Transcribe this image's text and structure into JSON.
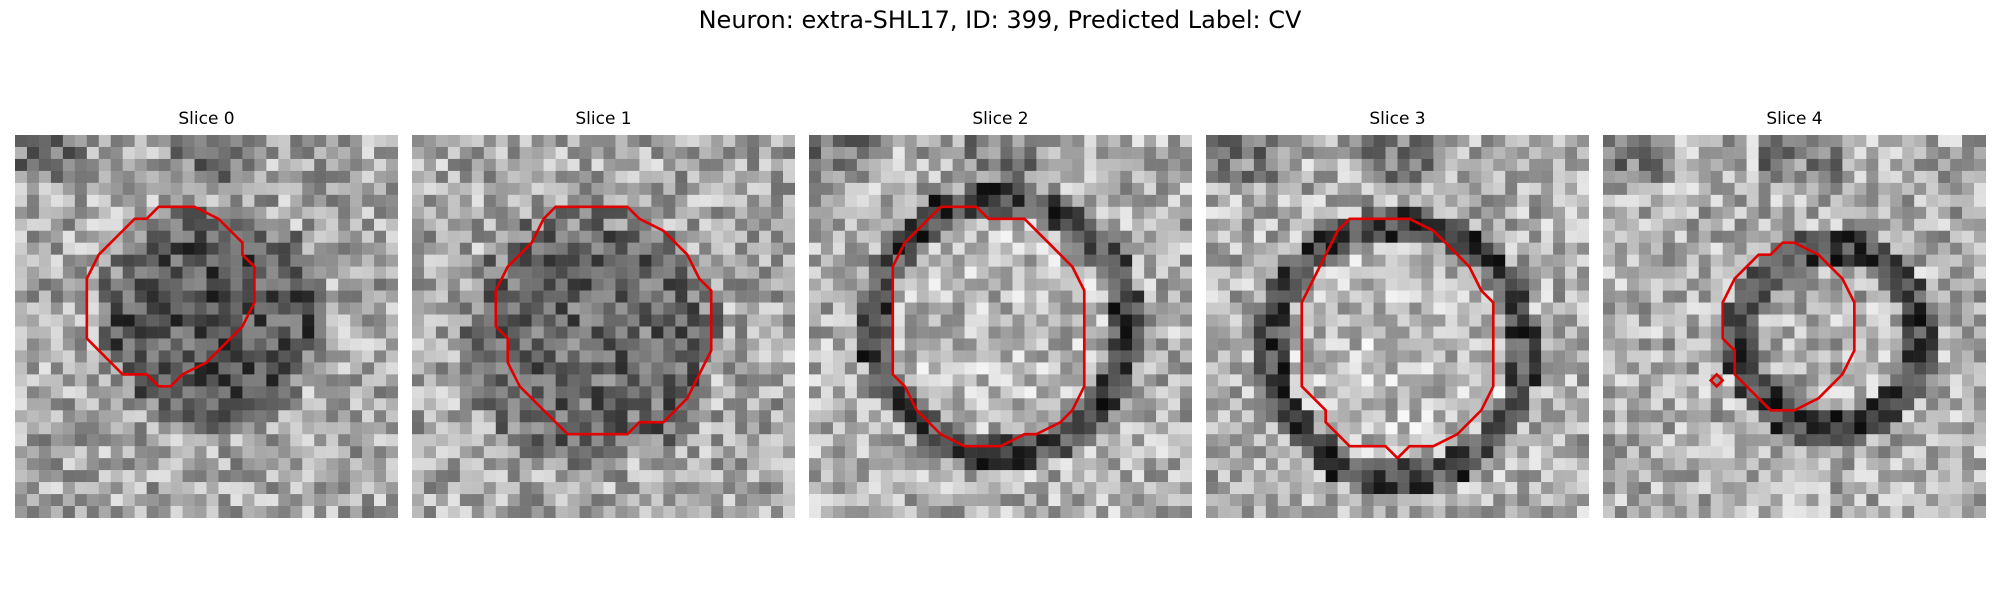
{
  "figure": {
    "title": "Neuron: extra-SHL17, ID: 399, Predicted Label: CV"
  },
  "panels": [
    {
      "title": "Slice 0"
    },
    {
      "title": "Slice 1"
    },
    {
      "title": "Slice 2"
    },
    {
      "title": "Slice 3"
    },
    {
      "title": "Slice 4"
    }
  ],
  "colors": {
    "contour": "#e00000",
    "background": "#ffffff",
    "text": "#000000"
  },
  "colormap": "grayscale"
}
